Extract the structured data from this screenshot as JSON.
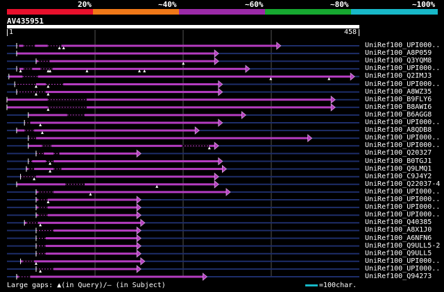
{
  "scale": {
    "labels": [
      "20%",
      "~40%",
      "~60%",
      "~80%",
      "~100%"
    ],
    "colors": [
      "#e8102c",
      "#f07818",
      "#9b2aa8",
      "#16a830",
      "#18b8c8"
    ]
  },
  "query": {
    "id": "AV435951",
    "start": "1",
    "end": "458"
  },
  "colors": {
    "hit": "#b43cc0",
    "bg_line": "#1e2e6a",
    "grid": "#555555",
    "marker": "#ffffff"
  },
  "hits": [
    {
      "label": "UniRef100_UPI000..",
      "s": 2.5,
      "e": 70.5,
      "gaps": [
        [
          2.5,
          3.1
        ],
        [
          4.2,
          7.2
        ],
        [
          10.5,
          14.0
        ]
      ],
      "markers": [
        13.5,
        14.6
      ]
    },
    {
      "label": "UniRef100_A8P059",
      "s": 2.5,
      "e": 54.5,
      "gaps": [],
      "markers": []
    },
    {
      "label": "UniRef100_Q3YQM8",
      "s": 7.5,
      "e": 54.5,
      "gaps": [
        [
          8.0,
          11.0
        ]
      ],
      "markers": [
        45.4
      ]
    },
    {
      "label": "UniRef100_UPI000..",
      "s": 2.5,
      "e": 62.5,
      "gaps": [
        [
          2.5,
          3.2
        ],
        [
          4.2,
          6.5
        ],
        [
          8.6,
          11.8
        ]
      ],
      "markers": [
        3.5,
        10.6,
        11.1,
        20.6,
        34.1,
        35.4
      ]
    },
    {
      "label": "UniRef100_Q2IMJ3",
      "s": 0.5,
      "e": 89.5,
      "gaps": [
        [
          4.0,
          8.0
        ]
      ],
      "markers": [
        67.9,
        82.9
      ]
    },
    {
      "label": "UniRef100_UPI000..",
      "s": 2.0,
      "e": 55.5,
      "gaps": [
        [
          2.0,
          7.5
        ],
        [
          10.0,
          14.5
        ]
      ],
      "markers": [
        7.5,
        10.6
      ]
    },
    {
      "label": "UniRef100_A8WZ35",
      "s": 2.5,
      "e": 55.5,
      "gaps": [
        [
          2.5,
          10.0
        ]
      ],
      "markers": [
        7.5,
        10.6
      ]
    },
    {
      "label": "UniRef100_B9FLY6",
      "s": 0.0,
      "e": 84.5,
      "gaps": [
        [
          10.5,
          20.5
        ]
      ],
      "markers": []
    },
    {
      "label": "UniRef100_B8AWI6",
      "s": 0.0,
      "e": 84.5,
      "gaps": [
        [
          10.5,
          20.5
        ]
      ],
      "markers": [
        10.6
      ]
    },
    {
      "label": "UniRef100_B6AGG8",
      "s": 5.5,
      "e": 61.5,
      "gaps": [
        [
          15.5,
          20.0
        ]
      ],
      "markers": []
    },
    {
      "label": "UniRef100_UPI000..",
      "s": 4.5,
      "e": 55.5,
      "gaps": [
        [
          4.5,
          6.0
        ]
      ],
      "markers": [
        8.6
      ]
    },
    {
      "label": "UniRef100_A8QDB8",
      "s": 2.5,
      "e": 49.5,
      "gaps": [
        [
          4.5,
          7.0
        ]
      ],
      "markers": [
        9.1
      ]
    },
    {
      "label": "UniRef100_UPI000..",
      "s": 5.5,
      "e": 78.5,
      "gaps": [
        [
          5.5,
          7.5
        ]
      ],
      "markers": []
    },
    {
      "label": "UniRef100_UPI000..",
      "s": 5.5,
      "e": 54.5,
      "gaps": [
        [
          9.0,
          11.5
        ],
        [
          45.0,
          52.0
        ]
      ],
      "markers": [
        52.1
      ]
    },
    {
      "label": "UniRef100_Q20327",
      "s": 7.5,
      "e": 34.5,
      "gaps": [
        [
          7.5,
          9.5
        ],
        [
          12.0,
          13.5
        ]
      ],
      "markers": []
    },
    {
      "label": "UniRef100_B0TGJ1",
      "s": 5.5,
      "e": 55.5,
      "gaps": [
        [
          5.5,
          6.5
        ],
        [
          10.0,
          12.0
        ]
      ],
      "markers": [
        11.1
      ]
    },
    {
      "label": "UniRef100_Q9LMQ1",
      "s": 5.0,
      "e": 56.5,
      "gaps": [
        [
          5.5,
          7.0
        ],
        [
          12.0,
          14.0
        ]
      ],
      "markers": [
        11.1
      ]
    },
    {
      "label": "UniRef100_C9J4Y2",
      "s": 3.5,
      "e": 54.5,
      "gaps": [
        [
          3.5,
          7.5
        ]
      ],
      "markers": [
        7.0
      ]
    },
    {
      "label": "UniRef100_Q22037-4",
      "s": 2.5,
      "e": 54.5,
      "gaps": [
        [
          15.0,
          20.0
        ]
      ],
      "markers": [
        38.6
      ]
    },
    {
      "label": "UniRef100_UPI000..",
      "s": 7.5,
      "e": 57.5,
      "gaps": [
        [
          8.0,
          12.0
        ]
      ],
      "markers": [
        21.5
      ]
    },
    {
      "label": "UniRef100_UPI000..",
      "s": 7.5,
      "e": 34.5,
      "gaps": [
        [
          8.0,
          10.5
        ]
      ],
      "markers": [
        10.6
      ]
    },
    {
      "label": "UniRef100_UPI000..",
      "s": 7.5,
      "e": 34.5,
      "gaps": [
        [
          8.0,
          10.5
        ]
      ],
      "markers": []
    },
    {
      "label": "UniRef100_UPI000..",
      "s": 7.5,
      "e": 34.5,
      "gaps": [
        [
          8.0,
          10.5
        ]
      ],
      "markers": []
    },
    {
      "label": "UniRef100_Q40385",
      "s": 4.5,
      "e": 35.5,
      "gaps": [
        [
          5.0,
          8.0
        ]
      ],
      "markers": [
        8.6
      ]
    },
    {
      "label": "UniRef100_A8X1J0",
      "s": 7.5,
      "e": 34.5,
      "gaps": [
        [
          7.5,
          12.0
        ]
      ],
      "markers": []
    },
    {
      "label": "UniRef100_A6NFN6",
      "s": 7.5,
      "e": 34.5,
      "gaps": [
        [
          7.5,
          10.0
        ]
      ],
      "markers": []
    },
    {
      "label": "UniRef100_Q9ULL5-2",
      "s": 7.5,
      "e": 34.5,
      "gaps": [
        [
          7.5,
          10.0
        ]
      ],
      "markers": []
    },
    {
      "label": "UniRef100_Q9ULL5",
      "s": 7.5,
      "e": 34.5,
      "gaps": [
        [
          7.5,
          10.0
        ]
      ],
      "markers": []
    },
    {
      "label": "UniRef100_UPI000..",
      "s": 3.5,
      "e": 35.5,
      "gaps": [
        [
          4.0,
          7.0
        ]
      ],
      "markers": [
        7.5
      ]
    },
    {
      "label": "UniRef100_UPI000..",
      "s": 7.5,
      "e": 34.5,
      "gaps": [
        [
          7.5,
          12.0
        ]
      ],
      "markers": [
        8.6
      ]
    },
    {
      "label": "UniRef100_Q94273",
      "s": 2.5,
      "e": 51.5,
      "gaps": [
        [
          3.0,
          6.0
        ]
      ],
      "markers": []
    }
  ],
  "footer": {
    "gaps_label": "Large gaps:",
    "query_marker": "▲",
    "query_text": "(in Query)",
    "subject_text": "/– (in Subject)"
  },
  "legend": {
    "text": "=100char."
  }
}
